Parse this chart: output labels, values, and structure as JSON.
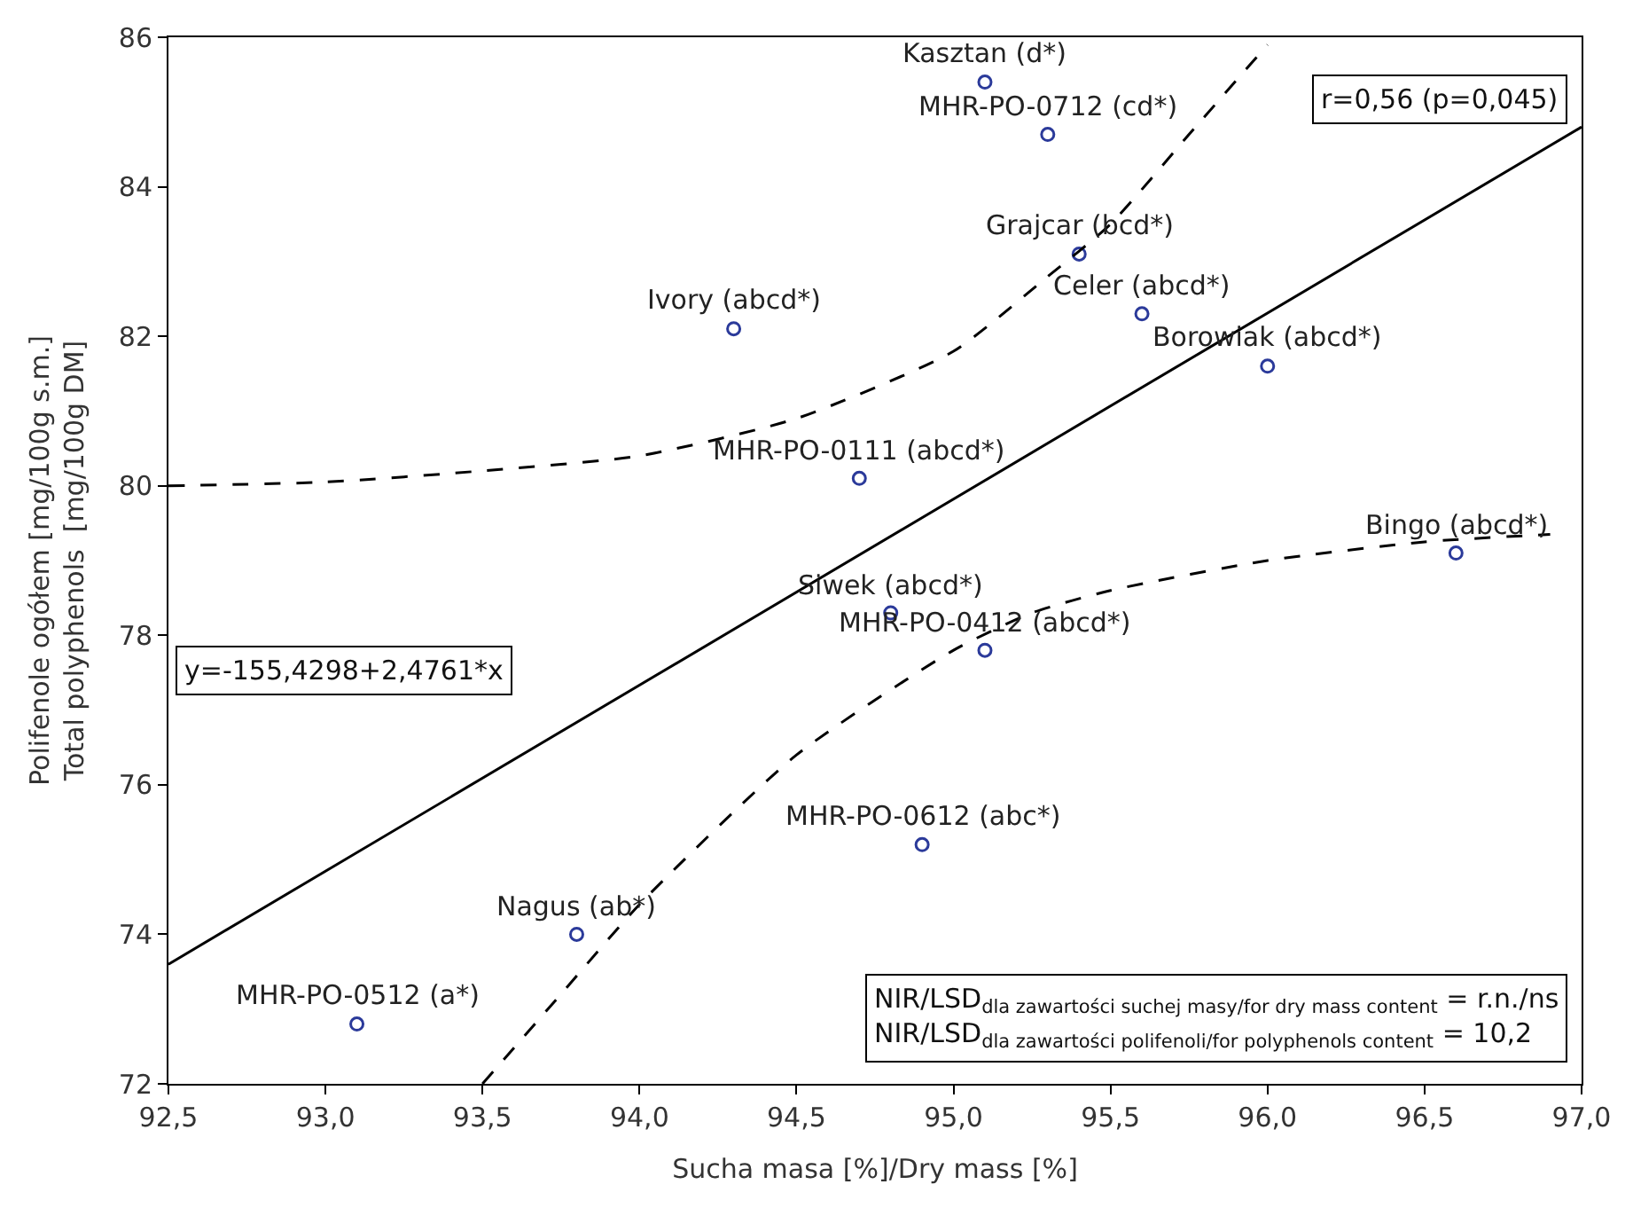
{
  "chart_data": {
    "type": "scatter",
    "xlabel": "Sucha masa [%]/Dry mass [%]",
    "ylabel": "Polifenole ogółem [mg/100g s.m.]\nTotal polyphenols  [mg/100g DM]",
    "xlim": [
      92.5,
      97.0
    ],
    "ylim": [
      72,
      86
    ],
    "xticks": [
      {
        "value": 92.5,
        "label": "92,5"
      },
      {
        "value": 93.0,
        "label": "93,0"
      },
      {
        "value": 93.5,
        "label": "93,5"
      },
      {
        "value": 94.0,
        "label": "94,0"
      },
      {
        "value": 94.5,
        "label": "94,5"
      },
      {
        "value": 95.0,
        "label": "95,0"
      },
      {
        "value": 95.5,
        "label": "95,5"
      },
      {
        "value": 96.0,
        "label": "96,0"
      },
      {
        "value": 96.5,
        "label": "96,5"
      },
      {
        "value": 97.0,
        "label": "97,0"
      }
    ],
    "yticks": [
      72,
      74,
      76,
      78,
      80,
      82,
      84,
      86
    ],
    "series": [
      {
        "marker": "circle",
        "color": "#2b3a9a",
        "x": [
          95.1,
          95.3,
          95.4,
          95.6,
          96.0,
          94.3,
          94.7,
          96.6,
          94.8,
          95.1,
          94.9,
          93.8,
          93.1
        ],
        "values": [
          85.4,
          84.7,
          83.1,
          82.3,
          81.6,
          82.1,
          80.1,
          79.1,
          78.3,
          77.8,
          75.2,
          74.0,
          72.8
        ]
      },
      {
        "type": "line",
        "marker": "none",
        "line_style": "solid",
        "color": "#000000",
        "x": [
          92.5,
          97.0
        ],
        "values": [
          73.6,
          84.8
        ]
      },
      {
        "type": "line",
        "marker": "none",
        "line_style": "dashed",
        "color": "#000000",
        "x": [
          92.5,
          93.0,
          93.5,
          94.0,
          94.5,
          95.0,
          95.3,
          95.5,
          95.75,
          96.0
        ],
        "values": [
          80.0,
          80.05,
          80.2,
          80.4,
          80.9,
          81.8,
          82.8,
          83.5,
          84.7,
          85.9
        ]
      },
      {
        "type": "line",
        "marker": "none",
        "line_style": "dashed",
        "color": "#000000",
        "x": [
          93.5,
          93.75,
          94.0,
          94.5,
          95.0,
          95.25,
          95.5,
          96.0,
          96.5,
          96.9
        ],
        "values": [
          72.0,
          73.2,
          74.4,
          76.4,
          77.8,
          78.3,
          78.6,
          79.0,
          79.25,
          79.35
        ]
      }
    ],
    "annotations": [
      {
        "text": "Kasztan (d*)",
        "x": 95.1,
        "y": 85.4
      },
      {
        "text": "MHR-PO-0712 (cd*)",
        "x": 95.3,
        "y": 84.7
      },
      {
        "text": "Grajcar (bcd*)",
        "x": 95.4,
        "y": 83.1
      },
      {
        "text": "Celer (abcd*)",
        "x": 95.6,
        "y": 82.3
      },
      {
        "text": "Borowiak (abcd*)",
        "x": 96.0,
        "y": 81.6
      },
      {
        "text": "Ivory (abcd*)",
        "x": 94.3,
        "y": 82.1
      },
      {
        "text": "MHR-PO-0111 (abcd*)",
        "x": 94.7,
        "y": 80.1
      },
      {
        "text": "Bingo (abcd*)",
        "x": 96.6,
        "y": 79.1
      },
      {
        "text": "Siwek (abcd*)",
        "x": 94.8,
        "y": 78.3
      },
      {
        "text": "MHR-PO-0412 (abcd*)",
        "x": 95.1,
        "y": 77.8
      },
      {
        "text": "MHR-PO-0612 (abc*)",
        "x": 94.9,
        "y": 75.2
      },
      {
        "text": "Nagus (ab*)",
        "x": 93.8,
        "y": 74.0
      },
      {
        "text": "MHR-PO-0512 (a*)",
        "x": 93.1,
        "y": 72.8
      },
      "r=0,56 (p=0,045)",
      "y=-155,4298+2,4761*x",
      "NIR/LSD$_{dla zawartości suchej masy/for dry mass content}$ = r.n./ns\nNIR/LSD$_{dla zawartości polifenoli/for polyphenols content}$ = 10,2"
    ]
  }
}
